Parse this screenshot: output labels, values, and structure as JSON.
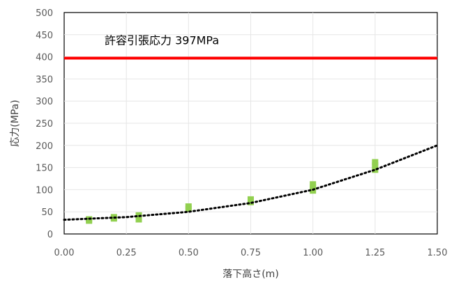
{
  "chart_data": {
    "type": "scatter",
    "xlabel": "落下高さ(m)",
    "ylabel": "応力(MPa)",
    "xlim": [
      0,
      1.5
    ],
    "ylim": [
      0,
      500
    ],
    "x_ticks": [
      "0.00",
      "0.25",
      "0.50",
      "0.75",
      "1.00",
      "1.25",
      "1.50"
    ],
    "y_ticks": [
      "0",
      "50",
      "100",
      "150",
      "200",
      "250",
      "300",
      "350",
      "400",
      "450",
      "500"
    ],
    "grid": true,
    "series": [
      {
        "marker_color": "#92d050",
        "points": [
          {
            "x": 0.1,
            "y": 30
          },
          {
            "x": 0.1,
            "y": 33
          },
          {
            "x": 0.2,
            "y": 35
          },
          {
            "x": 0.2,
            "y": 38
          },
          {
            "x": 0.3,
            "y": 33
          },
          {
            "x": 0.3,
            "y": 42
          },
          {
            "x": 0.5,
            "y": 57
          },
          {
            "x": 0.5,
            "y": 62
          },
          {
            "x": 0.75,
            "y": 72
          },
          {
            "x": 0.75,
            "y": 78
          },
          {
            "x": 1.0,
            "y": 98
          },
          {
            "x": 1.0,
            "y": 105
          },
          {
            "x": 1.0,
            "y": 112
          },
          {
            "x": 1.25,
            "y": 145
          },
          {
            "x": 1.25,
            "y": 155
          },
          {
            "x": 1.25,
            "y": 162
          }
        ]
      }
    ],
    "trendline": {
      "style": "dotted",
      "color": "#000000",
      "points": [
        {
          "x": 0,
          "y": 32
        },
        {
          "x": 0.25,
          "y": 38
        },
        {
          "x": 0.5,
          "y": 50
        },
        {
          "x": 0.75,
          "y": 70
        },
        {
          "x": 1.0,
          "y": 100
        },
        {
          "x": 1.25,
          "y": 145
        },
        {
          "x": 1.5,
          "y": 200
        }
      ]
    },
    "reference_line": {
      "y": 397,
      "label": "許容引張応力 397MPa",
      "color": "#ff0000"
    }
  }
}
